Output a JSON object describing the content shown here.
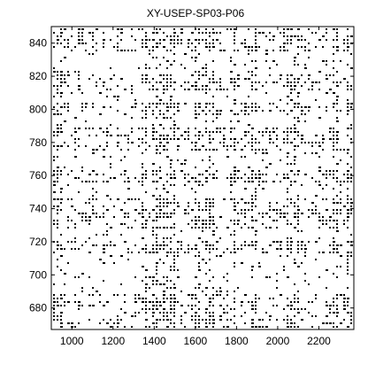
{
  "chart_data": {
    "type": "scatter",
    "title": "XY-USEP-SP03-P06",
    "xlabel": "",
    "ylabel": "",
    "xlim": [
      900,
      2370
    ],
    "ylim": [
      667,
      850
    ],
    "xticks": [
      1000,
      1200,
      1400,
      1600,
      1800,
      2000,
      2200
    ],
    "yticks": [
      680,
      700,
      720,
      740,
      760,
      780,
      800,
      820,
      840
    ],
    "xtick_labels": [
      "1000",
      "1200",
      "1400",
      "1600",
      "1800",
      "2000",
      "2200"
    ],
    "ytick_labels": [
      "680",
      "700",
      "720",
      "740",
      "760",
      "780",
      "800",
      "820",
      "840"
    ],
    "grid": false,
    "marker_color": "#000000",
    "description_of_marks": "Dense recurrence-style binary dot pattern",
    "dense_x_bands": [
      [
        905,
        960
      ],
      [
        1335,
        1370
      ],
      [
        1390,
        1500
      ],
      [
        1590,
        1620
      ],
      [
        1640,
        1690
      ],
      [
        1780,
        1800
      ],
      [
        1860,
        1900
      ],
      [
        2040,
        2100
      ],
      [
        2250,
        2300
      ],
      [
        2330,
        2365
      ]
    ],
    "dense_y_bands": [
      [
        667,
        690
      ],
      [
        712,
        722
      ],
      [
        728,
        748
      ],
      [
        755,
        765
      ],
      [
        775,
        790
      ],
      [
        796,
        806
      ],
      [
        812,
        823
      ],
      [
        835,
        849
      ]
    ]
  }
}
